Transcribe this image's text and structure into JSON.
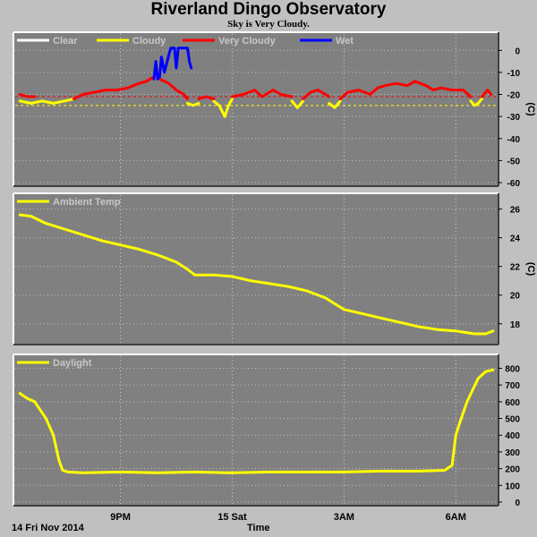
{
  "title": "Riverland Dingo Observatory",
  "subtitle": "Sky is Very Cloudy.",
  "footer": {
    "date_label": "14 Fri Nov 2014",
    "x_axis_label": "Time"
  },
  "x_ticks": [
    {
      "label": "9PM",
      "t": 21
    },
    {
      "label": "15 Sat",
      "t": 24
    },
    {
      "label": "3AM",
      "t": 27
    },
    {
      "label": "6AM",
      "t": 30
    }
  ],
  "time_range": [
    18.2,
    31.05
  ],
  "chart_data": [
    {
      "type": "line",
      "title": "",
      "ylabel": "(C)",
      "ylim": [
        -60,
        5
      ],
      "yticks": [
        0,
        -10,
        -20,
        -30,
        -40,
        -50,
        -60
      ],
      "thresholds": [
        {
          "value": -21,
          "color": "#ff0000"
        },
        {
          "value": -25,
          "color": "#ffff00"
        }
      ],
      "legend": [
        {
          "label": "Clear",
          "color": "#ffffff"
        },
        {
          "label": "Cloudy",
          "color": "#ffff00"
        },
        {
          "label": "Very Cloudy",
          "color": "#ff0000"
        },
        {
          "label": "Wet",
          "color": "#0000ff"
        }
      ],
      "series": [
        {
          "name": "Cloudy",
          "color": "#ffff00",
          "segments": [
            [
              [
                18.3,
                -23
              ],
              [
                18.6,
                -24
              ],
              [
                18.9,
                -23
              ],
              [
                19.2,
                -24
              ],
              [
                19.5,
                -23
              ],
              [
                19.75,
                -22
              ]
            ],
            [
              [
                22.8,
                -24
              ],
              [
                22.95,
                -25
              ],
              [
                23.1,
                -24
              ]
            ],
            [
              [
                23.5,
                -23
              ],
              [
                23.65,
                -25
              ],
              [
                23.8,
                -30
              ],
              [
                23.9,
                -25
              ],
              [
                24.0,
                -22
              ]
            ],
            [
              [
                25.6,
                -23
              ],
              [
                25.75,
                -26
              ],
              [
                25.9,
                -23
              ]
            ],
            [
              [
                26.6,
                -24
              ],
              [
                26.75,
                -26
              ],
              [
                26.9,
                -23
              ]
            ],
            [
              [
                30.4,
                -23
              ],
              [
                30.5,
                -25
              ],
              [
                30.6,
                -24
              ],
              [
                30.7,
                -22
              ]
            ]
          ]
        },
        {
          "name": "Very Cloudy",
          "color": "#ff0000",
          "segments": [
            [
              [
                18.3,
                -20
              ],
              [
                18.5,
                -21
              ],
              [
                18.7,
                -21
              ]
            ],
            [
              [
                19.75,
                -22
              ],
              [
                20.0,
                -20
              ],
              [
                20.3,
                -19
              ],
              [
                20.6,
                -18
              ],
              [
                20.9,
                -18
              ],
              [
                21.2,
                -17
              ],
              [
                21.5,
                -15
              ],
              [
                21.7,
                -14
              ],
              [
                21.9,
                -12
              ]
            ],
            [
              [
                22.05,
                -13
              ],
              [
                22.3,
                -15
              ],
              [
                22.5,
                -18
              ],
              [
                22.7,
                -20
              ],
              [
                22.8,
                -22
              ]
            ],
            [
              [
                23.1,
                -22
              ],
              [
                23.3,
                -21
              ],
              [
                23.5,
                -22
              ]
            ],
            [
              [
                24.0,
                -21
              ],
              [
                24.3,
                -20
              ],
              [
                24.6,
                -18
              ],
              [
                24.8,
                -21
              ],
              [
                25.1,
                -18
              ],
              [
                25.3,
                -20
              ],
              [
                25.6,
                -21
              ]
            ],
            [
              [
                25.9,
                -22
              ],
              [
                26.1,
                -19
              ],
              [
                26.3,
                -18
              ],
              [
                26.5,
                -20
              ],
              [
                26.6,
                -21
              ]
            ],
            [
              [
                26.9,
                -22
              ],
              [
                27.1,
                -19
              ],
              [
                27.4,
                -18
              ],
              [
                27.7,
                -20
              ],
              [
                27.9,
                -17
              ],
              [
                28.1,
                -16
              ],
              [
                28.4,
                -15
              ],
              [
                28.7,
                -16
              ],
              [
                28.9,
                -14
              ],
              [
                29.2,
                -16
              ],
              [
                29.4,
                -18
              ],
              [
                29.6,
                -17
              ],
              [
                29.9,
                -18
              ],
              [
                30.2,
                -18
              ],
              [
                30.4,
                -21
              ]
            ],
            [
              [
                30.7,
                -21
              ],
              [
                30.85,
                -18
              ],
              [
                30.95,
                -20
              ]
            ]
          ]
        },
        {
          "name": "Wet",
          "color": "#0000ff",
          "segments": [
            [
              [
                21.9,
                -13
              ],
              [
                21.95,
                -5
              ],
              [
                22.0,
                -13
              ],
              [
                22.05,
                -12
              ],
              [
                22.1,
                -3
              ],
              [
                22.18,
                -10
              ],
              [
                22.3,
                -2
              ],
              [
                22.35,
                1
              ],
              [
                22.45,
                1
              ],
              [
                22.5,
                -8
              ],
              [
                22.55,
                1
              ],
              [
                22.8,
                1
              ],
              [
                22.85,
                -5
              ],
              [
                22.9,
                -8
              ]
            ]
          ]
        }
      ]
    },
    {
      "type": "line",
      "title": "",
      "ylabel": "(C)",
      "ylim": [
        16.8,
        26.6
      ],
      "yticks": [
        26,
        24,
        22,
        20,
        18
      ],
      "legend": [
        {
          "label": "Ambient Temp",
          "color": "#ffff00"
        }
      ],
      "series": [
        {
          "name": "Ambient Temp",
          "color": "#ffff00",
          "segments": [
            [
              [
                18.3,
                25.6
              ],
              [
                18.6,
                25.5
              ],
              [
                19.0,
                25.0
              ],
              [
                19.5,
                24.6
              ],
              [
                20.0,
                24.2
              ],
              [
                20.5,
                23.8
              ],
              [
                21.0,
                23.5
              ],
              [
                21.5,
                23.2
              ],
              [
                22.0,
                22.8
              ],
              [
                22.5,
                22.3
              ],
              [
                22.8,
                21.8
              ],
              [
                23.0,
                21.4
              ],
              [
                23.5,
                21.4
              ],
              [
                24.0,
                21.3
              ],
              [
                24.5,
                21.0
              ],
              [
                25.0,
                20.8
              ],
              [
                25.5,
                20.6
              ],
              [
                26.0,
                20.3
              ],
              [
                26.5,
                19.8
              ],
              [
                27.0,
                19.0
              ],
              [
                27.5,
                18.7
              ],
              [
                28.0,
                18.4
              ],
              [
                28.5,
                18.1
              ],
              [
                29.0,
                17.8
              ],
              [
                29.5,
                17.6
              ],
              [
                30.0,
                17.5
              ],
              [
                30.5,
                17.3
              ],
              [
                30.8,
                17.3
              ],
              [
                31.0,
                17.5
              ]
            ]
          ]
        }
      ]
    },
    {
      "type": "line",
      "title": "",
      "ylabel": "",
      "ylim": [
        0,
        840
      ],
      "yticks": [
        800,
        700,
        600,
        500,
        400,
        300,
        200,
        100,
        0
      ],
      "legend": [
        {
          "label": "Daylight",
          "color": "#ffff00"
        }
      ],
      "series": [
        {
          "name": "Daylight",
          "color": "#ffff00",
          "segments": [
            [
              [
                18.3,
                650
              ],
              [
                18.5,
                620
              ],
              [
                18.7,
                600
              ],
              [
                19.0,
                500
              ],
              [
                19.2,
                400
              ],
              [
                19.35,
                250
              ],
              [
                19.45,
                190
              ],
              [
                19.6,
                180
              ],
              [
                20.0,
                175
              ],
              [
                21.0,
                180
              ],
              [
                22.0,
                175
              ],
              [
                23.0,
                180
              ],
              [
                24.0,
                175
              ],
              [
                25.0,
                180
              ],
              [
                26.0,
                180
              ],
              [
                27.0,
                180
              ],
              [
                28.0,
                185
              ],
              [
                29.0,
                185
              ],
              [
                29.7,
                190
              ],
              [
                29.9,
                220
              ],
              [
                30.0,
                400
              ],
              [
                30.1,
                470
              ],
              [
                30.3,
                600
              ],
              [
                30.6,
                740
              ],
              [
                30.8,
                780
              ],
              [
                31.0,
                790
              ]
            ]
          ]
        }
      ]
    }
  ]
}
